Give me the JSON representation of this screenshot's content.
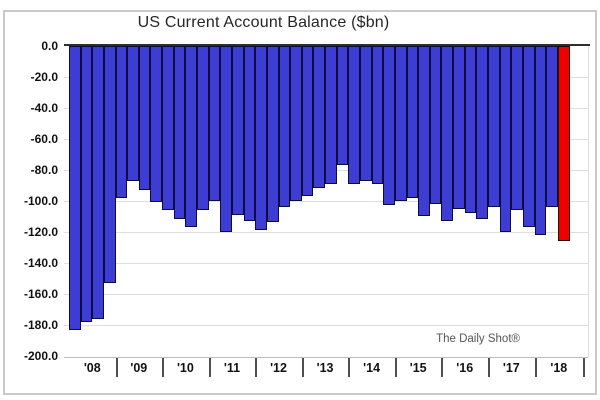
{
  "title": "US Current Account Balance ($bn)",
  "watermark": "The Daily Shot®",
  "y_axis": {
    "tick_labels": [
      "0.0",
      "-20.0",
      "-40.0",
      "-60.0",
      "-80.0",
      "-100.0",
      "-120.0",
      "-140.0",
      "-160.0",
      "-180.0",
      "-200.0"
    ]
  },
  "x_axis": {
    "tick_labels": [
      "'08",
      "'09",
      "'10",
      "'11",
      "'12",
      "'13",
      "'14",
      "'15",
      "'16",
      "'17",
      "'18"
    ]
  },
  "colors": {
    "bar_fill": "#3d3dd4",
    "bar_border": "#0c0c3f",
    "highlight_fill": "#ee0000",
    "highlight_border": "#240000",
    "grid": "#dedede",
    "zero_line": "#2e2e2e",
    "axis_line": "#bdbdbd",
    "separator": "#4f4f4f",
    "title_text": "#262626",
    "tick_text": "#111111",
    "watermark_text": "#555555"
  },
  "chart_data": {
    "type": "bar",
    "title": "US Current Account Balance ($bn)",
    "xlabel": "",
    "ylabel": "",
    "unit": "$bn",
    "ylim": [
      -200,
      0
    ],
    "ytick_step": 20,
    "grid": true,
    "legend": "none",
    "bar_grouping": "quarterly bars grouped by year",
    "groups": [
      {
        "year": "'08",
        "values": [
          -183,
          -178,
          -176,
          -153
        ]
      },
      {
        "year": "'09",
        "values": [
          -98,
          -87,
          -93,
          -101
        ]
      },
      {
        "year": "'10",
        "values": [
          -106,
          -112,
          -117,
          -106
        ]
      },
      {
        "year": "'11",
        "values": [
          -100,
          -120,
          -109,
          -113
        ]
      },
      {
        "year": "'12",
        "values": [
          -119,
          -114,
          -104,
          -100
        ]
      },
      {
        "year": "'13",
        "values": [
          -97,
          -92,
          -89,
          -77
        ]
      },
      {
        "year": "'14",
        "values": [
          -89,
          -87,
          -89,
          -103
        ]
      },
      {
        "year": "'15",
        "values": [
          -100,
          -98,
          -110,
          -102
        ]
      },
      {
        "year": "'16",
        "values": [
          -113,
          -105,
          -108,
          -112
        ]
      },
      {
        "year": "'17",
        "values": [
          -104,
          -120,
          -106,
          -117
        ]
      },
      {
        "year": "'18",
        "values": [
          -122,
          -104,
          -126
        ]
      }
    ],
    "highlight": {
      "group": "'18",
      "value_index": 2,
      "color": "red",
      "note": "last bar drawn in red"
    }
  }
}
